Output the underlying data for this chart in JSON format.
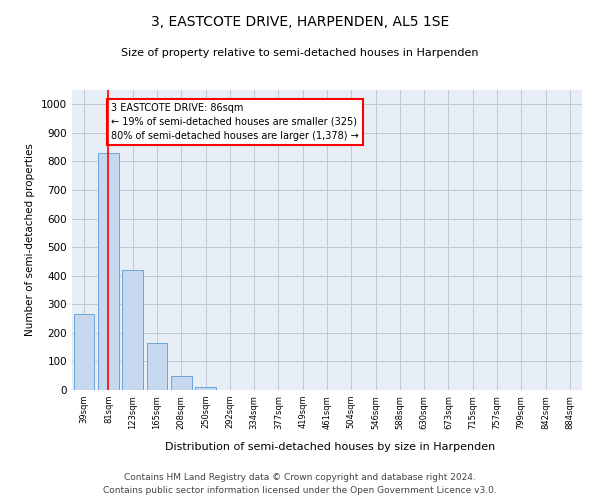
{
  "title": "3, EASTCOTE DRIVE, HARPENDEN, AL5 1SE",
  "subtitle": "Size of property relative to semi-detached houses in Harpenden",
  "xlabel": "Distribution of semi-detached houses by size in Harpenden",
  "ylabel": "Number of semi-detached properties",
  "categories": [
    "39sqm",
    "81sqm",
    "123sqm",
    "165sqm",
    "208sqm",
    "250sqm",
    "292sqm",
    "334sqm",
    "377sqm",
    "419sqm",
    "461sqm",
    "504sqm",
    "546sqm",
    "588sqm",
    "630sqm",
    "673sqm",
    "715sqm",
    "757sqm",
    "799sqm",
    "842sqm",
    "884sqm"
  ],
  "values": [
    265,
    830,
    420,
    165,
    50,
    12,
    0,
    0,
    0,
    0,
    0,
    0,
    0,
    0,
    0,
    0,
    0,
    0,
    0,
    0,
    0
  ],
  "bar_color": "#c5d8ed",
  "bar_edge_color": "#5b9bd5",
  "vline_color": "#ff0000",
  "vline_x": 1.0,
  "annotation_title": "3 EASTCOTE DRIVE: 86sqm",
  "annotation_line1": "← 19% of semi-detached houses are smaller (325)",
  "annotation_line2": "80% of semi-detached houses are larger (1,378) →",
  "annotation_box_color": "#ffffff",
  "annotation_box_edge_color": "#ff0000",
  "ylim": [
    0,
    1050
  ],
  "yticks": [
    0,
    100,
    200,
    300,
    400,
    500,
    600,
    700,
    800,
    900,
    1000
  ],
  "grid_color": "#c0c8d8",
  "background_color": "#e8eef5",
  "footer_line1": "Contains HM Land Registry data © Crown copyright and database right 2024.",
  "footer_line2": "Contains public sector information licensed under the Open Government Licence v3.0."
}
